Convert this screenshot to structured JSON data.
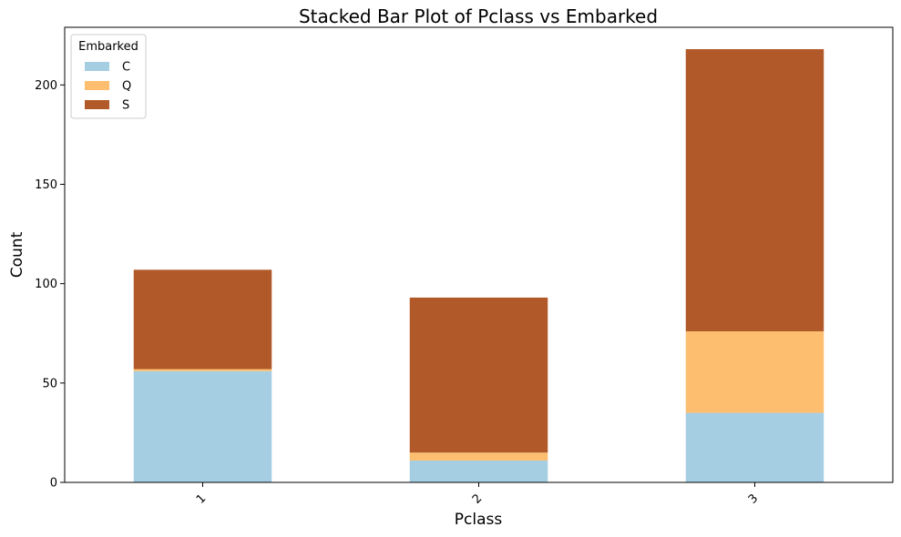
{
  "chart_data": {
    "type": "bar",
    "stacked": true,
    "title": "Stacked Bar Plot of Pclass vs Embarked",
    "xlabel": "Pclass",
    "ylabel": "Count",
    "categories": [
      "1",
      "2",
      "3"
    ],
    "series": [
      {
        "name": "C",
        "values": [
          56,
          11,
          35
        ],
        "color": "#a6cee3"
      },
      {
        "name": "Q",
        "values": [
          1,
          4,
          41
        ],
        "color": "#fdbf6f"
      },
      {
        "name": "S",
        "values": [
          50,
          78,
          142
        ],
        "color": "#b15928"
      }
    ],
    "ylim": [
      0,
      229
    ],
    "yticks": [
      0,
      50,
      100,
      150,
      200
    ],
    "legend": {
      "title": "Embarked",
      "placement": "top-left"
    },
    "grid": false
  }
}
